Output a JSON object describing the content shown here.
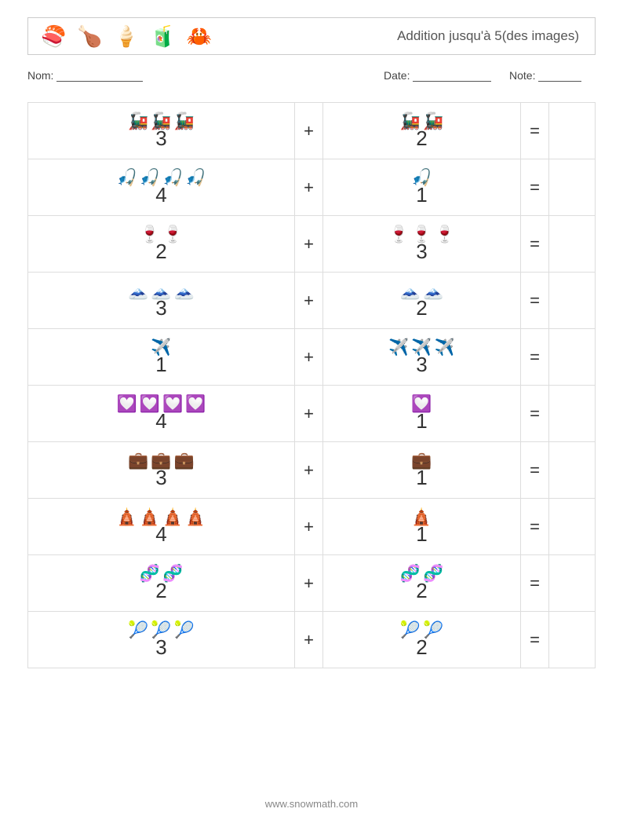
{
  "header": {
    "title": "Addition jusqu'à 5(des images)",
    "icons": [
      "🍣",
      "🍗",
      "🍦",
      "🧃",
      "🦀"
    ]
  },
  "labels": {
    "nom": "Nom:",
    "date": "Date:",
    "note": "Note:"
  },
  "ops": {
    "plus": "+",
    "equals": "="
  },
  "rows": [
    {
      "left_count": 3,
      "right_count": 2,
      "icon": "🚂",
      "icon_name": "train-icon"
    },
    {
      "left_count": 4,
      "right_count": 1,
      "icon": "🎣",
      "icon_name": "float-icon"
    },
    {
      "left_count": 2,
      "right_count": 3,
      "icon": "🍷",
      "icon_name": "cup-icon"
    },
    {
      "left_count": 3,
      "right_count": 2,
      "icon": "🗻",
      "icon_name": "mountain-icon"
    },
    {
      "left_count": 1,
      "right_count": 3,
      "icon": "✈️",
      "icon_name": "plane-icon"
    },
    {
      "left_count": 4,
      "right_count": 1,
      "icon": "💟",
      "icon_name": "heart-card-icon"
    },
    {
      "left_count": 3,
      "right_count": 1,
      "icon": "💼",
      "icon_name": "briefcase-icon"
    },
    {
      "left_count": 4,
      "right_count": 1,
      "icon": "🛕",
      "icon_name": "temple-icon"
    },
    {
      "left_count": 2,
      "right_count": 2,
      "icon": "🧬",
      "icon_name": "dna-icon"
    },
    {
      "left_count": 3,
      "right_count": 2,
      "icon": "🎾",
      "icon_name": "tennis-ball-icon"
    }
  ],
  "footer": "www.snowmath.com"
}
